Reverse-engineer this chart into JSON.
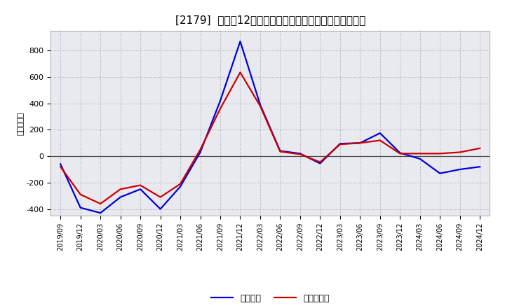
{
  "title": "[2179]  利益だ12か月移動合計の対前年同期増減額の推移",
  "ylabel": "（百万円）",
  "x_labels": [
    "2019/09",
    "2019/12",
    "2020/03",
    "2020/06",
    "2020/09",
    "2020/12",
    "2021/03",
    "2021/06",
    "2021/09",
    "2021/12",
    "2022/03",
    "2022/06",
    "2022/09",
    "2022/12",
    "2023/03",
    "2023/06",
    "2023/09",
    "2023/12",
    "2024/03",
    "2024/06",
    "2024/09",
    "2024/12"
  ],
  "keijo_rieki": [
    -60,
    -390,
    -430,
    -310,
    -250,
    -400,
    -230,
    30,
    420,
    870,
    390,
    40,
    20,
    -55,
    95,
    100,
    175,
    25,
    -20,
    -130,
    -100,
    -80
  ],
  "touki_jun_rieki": [
    -80,
    -290,
    -360,
    -250,
    -220,
    -310,
    -210,
    50,
    360,
    635,
    380,
    35,
    15,
    -45,
    90,
    100,
    120,
    20,
    20,
    20,
    30,
    60
  ],
  "ylim": [
    -450,
    950
  ],
  "yticks": [
    -400,
    -200,
    0,
    200,
    400,
    600,
    800
  ],
  "line_color_keijo": "#0000dd",
  "line_color_touki": "#cc0000",
  "background_color": "#ffffff",
  "plot_bg_color": "#e8eaf0",
  "grid_color": "#999999",
  "legend_keijo": "経常利益",
  "legend_touki": "当期純利益",
  "title_fontsize": 11,
  "axis_fontsize": 8,
  "tick_fontsize": 7
}
